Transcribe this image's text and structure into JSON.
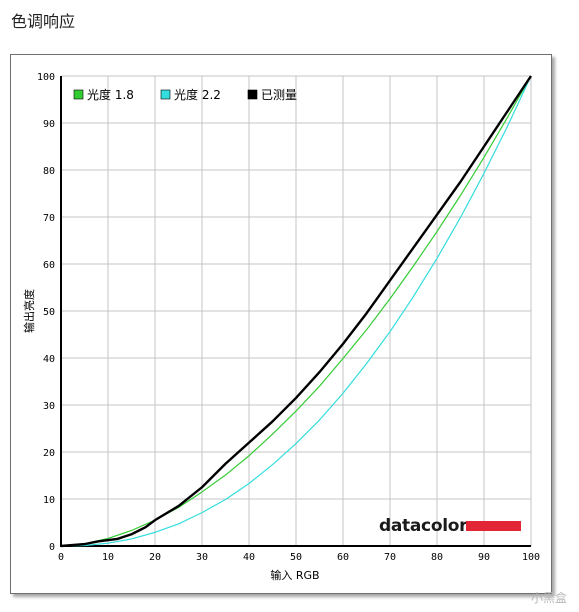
{
  "page": {
    "title": "色调响应"
  },
  "watermark": "小黑盒",
  "brand": {
    "name": "datacolor",
    "accent": "#e32636"
  },
  "chart_data": {
    "type": "line",
    "title": "",
    "xlabel": "输入 RGB",
    "ylabel": "输出亮度",
    "xlim": [
      0,
      100
    ],
    "ylim": [
      0,
      100
    ],
    "xticks": [
      0,
      10,
      20,
      30,
      40,
      50,
      60,
      70,
      80,
      90,
      100
    ],
    "yticks": [
      0,
      10,
      20,
      30,
      40,
      50,
      60,
      70,
      80,
      90,
      100
    ],
    "grid": true,
    "legend_position": "top-left",
    "series": [
      {
        "name": "光度 1.8",
        "color": "#33cc33",
        "gamma": 1.8,
        "x": [
          0,
          5,
          10,
          15,
          20,
          25,
          30,
          35,
          40,
          45,
          50,
          55,
          60,
          65,
          70,
          75,
          80,
          85,
          90,
          95,
          100
        ],
        "y": [
          0,
          0.5,
          1.6,
          3.3,
          5.5,
          8.2,
          11.5,
          15.1,
          19.2,
          23.8,
          28.7,
          34.0,
          39.9,
          46.0,
          52.6,
          59.6,
          66.9,
          74.6,
          82.7,
          91.2,
          100
        ]
      },
      {
        "name": "光度 2.2",
        "color": "#33dddd",
        "gamma": 2.2,
        "x": [
          0,
          5,
          10,
          15,
          20,
          25,
          30,
          35,
          40,
          45,
          50,
          55,
          60,
          65,
          70,
          75,
          80,
          85,
          90,
          95,
          100
        ],
        "y": [
          0,
          0.1,
          0.6,
          1.5,
          2.9,
          4.7,
          7.1,
          9.9,
          13.3,
          17.3,
          21.8,
          26.8,
          32.5,
          38.8,
          45.6,
          53.1,
          61.2,
          69.9,
          79.3,
          89.3,
          100
        ]
      },
      {
        "name": "已测量",
        "color": "#000000",
        "x": [
          0,
          5,
          8,
          12,
          15,
          18,
          20,
          25,
          30,
          35,
          40,
          45,
          50,
          55,
          60,
          65,
          70,
          75,
          80,
          85,
          90,
          95,
          100
        ],
        "y": [
          0,
          0.4,
          1.0,
          1.5,
          2.5,
          4.0,
          5.5,
          8.5,
          12.5,
          17.5,
          22.0,
          26.5,
          31.5,
          37.0,
          43.0,
          49.5,
          56.5,
          63.5,
          70.5,
          77.5,
          85.0,
          92.5,
          100
        ]
      }
    ]
  }
}
